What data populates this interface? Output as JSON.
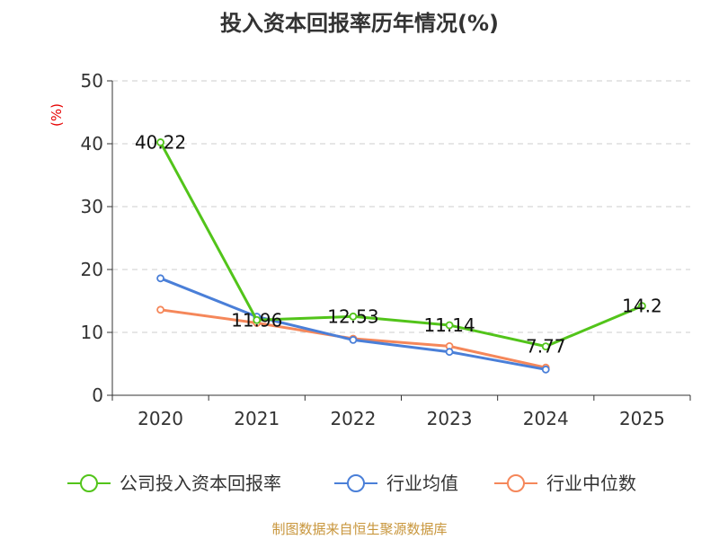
{
  "chart_data": {
    "type": "line",
    "title": "投入资本回报率历年情况(%)",
    "unit_label": "(%)",
    "categories": [
      "2020",
      "2021",
      "2022",
      "2023",
      "2024",
      "2025"
    ],
    "ylim": [
      0,
      50
    ],
    "yticks": [
      0,
      10,
      20,
      30,
      40,
      50
    ],
    "grid": true,
    "series": [
      {
        "name": "公司投入资本回报率",
        "color": "#52c41a",
        "values": [
          40.22,
          11.96,
          12.53,
          11.14,
          7.77,
          14.2
        ],
        "labels": [
          "40.22",
          "11.96",
          "12.53",
          "11.14",
          "7.77",
          "14.2"
        ]
      },
      {
        "name": "行业均值",
        "color": "#4a7fd8",
        "values": [
          18.6,
          12.5,
          8.8,
          6.9,
          4.1,
          null
        ]
      },
      {
        "name": "行业中位数",
        "color": "#f5875a",
        "values": [
          13.6,
          11.5,
          9.0,
          7.8,
          4.4,
          null
        ]
      }
    ],
    "legend_position": "bottom",
    "source": "制图数据来自恒生聚源数据库"
  }
}
